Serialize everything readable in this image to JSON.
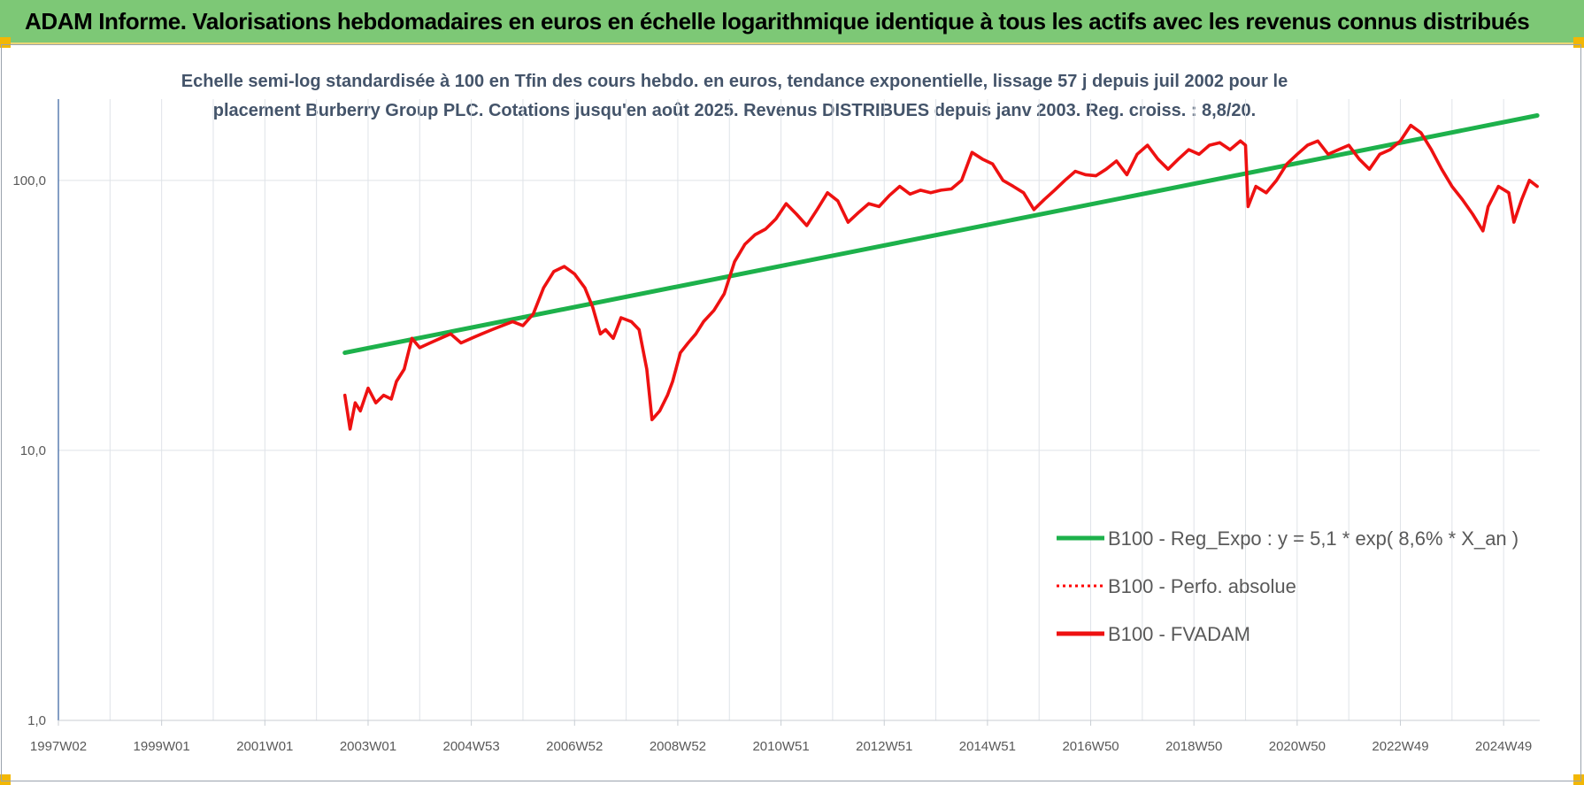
{
  "header": {
    "title": "ADAM Informe. Valorisations hebdomadaires en euros en échelle logarithmique identique à tous les actifs avec les revenus connus distribués"
  },
  "chart_data": {
    "type": "line",
    "title": "Echelle semi-log standardisée à 100 en Tfin des cours hebdo. en euros, tendance exponentielle, lissage 57 j depuis juil 2002 pour le placement Burberry Group PLC. Cotations jusqu'en août 2025. Revenus DISTRIBUES depuis janv 2003. Reg. croiss. : 8,8/20.",
    "title_lines": [
      "Echelle semi-log standardisée à 100 en Tfin des cours hebdo. en euros, tendance exponentielle, lissage 57 j depuis juil 2002 pour le",
      "placement Burberry Group PLC. Cotations jusqu'en août 2025. Revenus DISTRIBUES depuis janv 2003. Reg. croiss. : 8,8/20."
    ],
    "y_scale": "log",
    "ylim": [
      1,
      200
    ],
    "y_ticks": [
      1,
      10,
      100
    ],
    "y_tick_labels": [
      "1,0",
      "10,0",
      "100,0"
    ],
    "xlim": [
      1997.0,
      2025.7
    ],
    "x_tick_labels": [
      "1997W02",
      "1999W01",
      "2001W01",
      "2003W01",
      "2004W53",
      "2006W52",
      "2008W52",
      "2010W51",
      "2012W51",
      "2014W51",
      "2016W50",
      "2018W50",
      "2020W50",
      "2022W49",
      "2024W49"
    ],
    "grid": true,
    "legend_position": "lower-right",
    "series": [
      {
        "name": "B100 - Reg_Expo : y = 5,1 * exp( 8,6% *  X_an )",
        "color": "#1db14b",
        "style": "solid",
        "x": [
          2002.55,
          2025.65
        ],
        "y": [
          23,
          174
        ]
      },
      {
        "name": "B100 - Perfo. absolue",
        "color": "#ff0000",
        "style": "dotted",
        "x": [],
        "y": []
      },
      {
        "name": "B100 - FVADAM",
        "color": "#ee1111",
        "style": "solid",
        "x": [
          2002.55,
          2002.65,
          2002.75,
          2002.85,
          2003.0,
          2003.15,
          2003.3,
          2003.45,
          2003.55,
          2003.7,
          2003.85,
          2004.0,
          2004.2,
          2004.4,
          2004.6,
          2004.8,
          2005.0,
          2005.2,
          2005.4,
          2005.6,
          2005.8,
          2006.0,
          2006.2,
          2006.4,
          2006.6,
          2006.8,
          2007.0,
          2007.2,
          2007.35,
          2007.5,
          2007.6,
          2007.75,
          2007.9,
          2008.1,
          2008.25,
          2008.4,
          2008.5,
          2008.65,
          2008.8,
          2008.9,
          2009.05,
          2009.2,
          2009.35,
          2009.5,
          2009.7,
          2009.9,
          2010.1,
          2010.3,
          2010.5,
          2010.7,
          2010.9,
          2011.1,
          2011.3,
          2011.5,
          2011.7,
          2011.9,
          2012.1,
          2012.3,
          2012.5,
          2012.7,
          2012.9,
          2013.1,
          2013.3,
          2013.5,
          2013.7,
          2013.9,
          2014.1,
          2014.3,
          2014.5,
          2014.7,
          2014.9,
          2015.1,
          2015.3,
          2015.5,
          2015.7,
          2015.9,
          2016.1,
          2016.3,
          2016.5,
          2016.7,
          2016.9,
          2017.1,
          2017.3,
          2017.5,
          2017.7,
          2017.9,
          2018.1,
          2018.3,
          2018.5,
          2018.7,
          2018.9,
          2019.1,
          2019.3,
          2019.5,
          2019.7,
          2019.9,
          2020.0,
          2020.05,
          2020.2,
          2020.4,
          2020.6,
          2020.8,
          2021.0,
          2021.2,
          2021.4,
          2021.6,
          2021.8,
          2022.0,
          2022.2,
          2022.4,
          2022.6,
          2022.8,
          2023.0,
          2023.2,
          2023.4,
          2023.6,
          2023.8,
          2024.0,
          2024.2,
          2024.4,
          2024.6,
          2024.7,
          2024.9,
          2025.1,
          2025.2,
          2025.35,
          2025.5,
          2025.65
        ],
        "y": [
          16,
          12,
          15,
          14,
          17,
          15,
          16,
          15.5,
          18,
          20,
          26,
          24,
          25,
          26,
          27,
          25,
          26,
          27,
          28,
          29,
          30,
          29,
          32,
          40,
          46,
          48,
          45,
          40,
          34,
          27,
          28,
          26,
          31,
          30,
          28,
          20,
          13,
          14,
          16,
          18,
          23,
          25,
          27,
          30,
          33,
          38,
          50,
          58,
          63,
          66,
          72,
          82,
          75,
          68,
          78,
          90,
          84,
          70,
          76,
          82,
          80,
          88,
          95,
          89,
          92,
          90,
          92,
          93,
          100,
          127,
          120,
          115,
          100,
          95,
          90,
          78,
          85,
          92,
          100,
          108,
          105,
          104,
          110,
          118,
          105,
          125,
          135,
          120,
          110,
          120,
          130,
          125,
          135,
          138,
          130,
          140,
          135,
          80,
          95,
          90,
          100,
          115,
          125,
          135,
          140,
          125,
          130,
          135,
          120,
          110,
          125,
          130,
          140,
          160,
          150,
          130,
          110,
          95,
          85,
          75,
          65,
          80,
          95,
          90,
          70,
          85,
          100,
          95
        ]
      }
    ]
  }
}
